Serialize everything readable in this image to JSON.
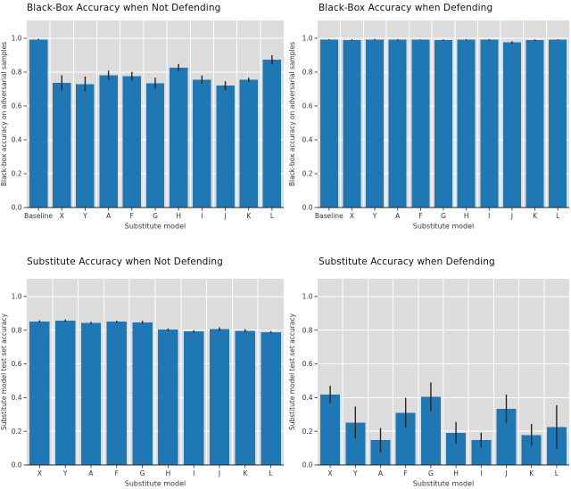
{
  "figure": {
    "background": "#ffffff",
    "plot_bg": "#dcdcdc",
    "grid_color": "#ffffff",
    "bar_color": "#1f77b4",
    "error_color": "#262626",
    "spine_color": "#262626",
    "tick_text_color": "#333333",
    "title_color": "#111111"
  },
  "chart_data": [
    {
      "type": "bar",
      "title": "Black-Box Accuracy when Not Defending",
      "xlabel": "Substitute model",
      "ylabel": "Black-box accuracy on adversarial samples",
      "categories": [
        "Baseline",
        "X",
        "Y",
        "A",
        "F",
        "G",
        "H",
        "I",
        "J",
        "K",
        "L"
      ],
      "values": [
        0.993,
        0.737,
        0.73,
        0.781,
        0.775,
        0.735,
        0.827,
        0.756,
        0.72,
        0.754,
        0.873
      ],
      "errors": [
        0.004,
        0.045,
        0.044,
        0.027,
        0.026,
        0.032,
        0.021,
        0.024,
        0.026,
        0.013,
        0.027
      ],
      "yticks": [
        0.0,
        0.2,
        0.4,
        0.6,
        0.8,
        1.0
      ],
      "ylim": [
        0,
        1.105
      ],
      "grid": true,
      "legend": null
    },
    {
      "type": "bar",
      "title": "Black-Box Accuracy when Defending",
      "xlabel": "Substitute model",
      "ylabel": "Black-box accuracy on adversarial samples",
      "categories": [
        "Baseline",
        "X",
        "Y",
        "A",
        "F",
        "G",
        "H",
        "I",
        "J",
        "K",
        "L"
      ],
      "values": [
        0.993,
        0.99,
        0.992,
        0.992,
        0.991,
        0.989,
        0.992,
        0.991,
        0.976,
        0.988,
        0.992
      ],
      "errors": [
        0.002,
        0.004,
        0.004,
        0.003,
        0.002,
        0.004,
        0.003,
        0.004,
        0.007,
        0.005,
        0.002
      ],
      "yticks": [
        0.0,
        0.2,
        0.4,
        0.6,
        0.8,
        1.0
      ],
      "ylim": [
        0,
        1.105
      ],
      "grid": true,
      "legend": null
    },
    {
      "type": "bar",
      "title": "Substitute Accuracy when Not Defending",
      "xlabel": "Substitute model",
      "ylabel": "Substitute model test set accuracy",
      "categories": [
        "X",
        "Y",
        "A",
        "F",
        "G",
        "H",
        "I",
        "J",
        "K",
        "L"
      ],
      "values": [
        0.852,
        0.857,
        0.843,
        0.85,
        0.847,
        0.803,
        0.792,
        0.807,
        0.796,
        0.788
      ],
      "errors": [
        0.006,
        0.007,
        0.007,
        0.006,
        0.01,
        0.007,
        0.008,
        0.01,
        0.01,
        0.006
      ],
      "yticks": [
        0.0,
        0.2,
        0.4,
        0.6,
        0.8,
        1.0
      ],
      "ylim": [
        0,
        1.105
      ],
      "grid": true,
      "legend": null
    },
    {
      "type": "bar",
      "title": "Substitute Accuracy when Defending",
      "xlabel": "Substitute model",
      "ylabel": "Substitute model test set accuracy",
      "categories": [
        "X",
        "Y",
        "A",
        "F",
        "G",
        "H",
        "I",
        "J",
        "K",
        "L"
      ],
      "values": [
        0.418,
        0.252,
        0.147,
        0.31,
        0.405,
        0.19,
        0.147,
        0.333,
        0.178,
        0.225
      ],
      "errors": [
        0.052,
        0.095,
        0.072,
        0.088,
        0.085,
        0.065,
        0.045,
        0.085,
        0.065,
        0.13
      ],
      "yticks": [
        0.0,
        0.2,
        0.4,
        0.6,
        0.8,
        1.0
      ],
      "ylim": [
        0,
        1.105
      ],
      "grid": true,
      "legend": null
    }
  ]
}
